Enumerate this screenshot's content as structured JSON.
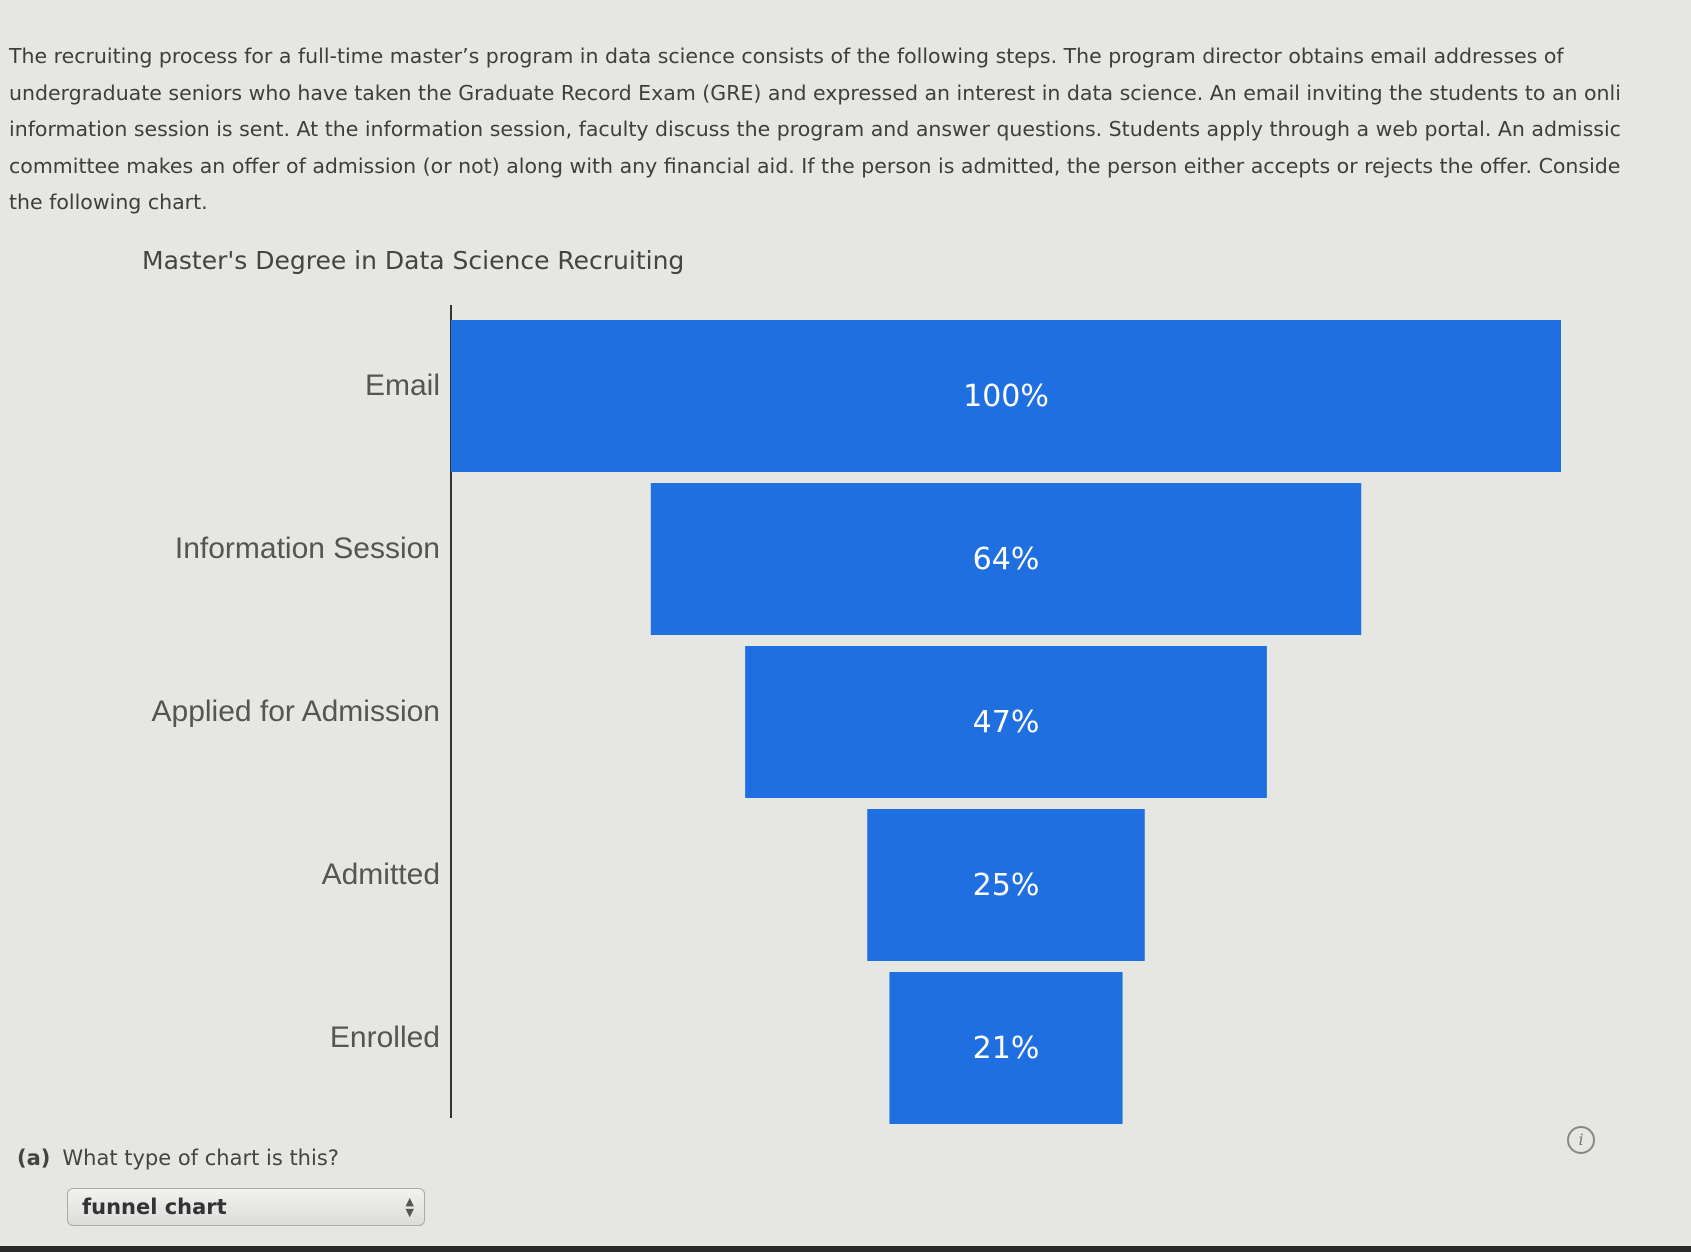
{
  "problem": {
    "lines": [
      "The recruiting process for a full-time master’s program in data science consists of the following steps. The program director obtains email addresses of",
      "undergraduate seniors who have taken the Graduate Record Exam (GRE) and expressed an interest in data science. An email inviting the students to an onli",
      "information session is sent. At the information session, faculty discuss the program and answer questions. Students apply through a web portal. An admissic",
      "committee makes an offer of admission (or not) along with any financial aid. If the person is admitted, the person either accepts or rejects the offer. Conside",
      "the following chart."
    ]
  },
  "chart_data": {
    "type": "bar",
    "subtype": "funnel",
    "title": "Master's Degree in Data Science Recruiting",
    "categories": [
      "Email",
      "Information Session",
      "Applied for Admission",
      "Admitted",
      "Enrolled"
    ],
    "values": [
      100,
      64,
      47,
      25,
      21
    ],
    "data_labels": [
      "100%",
      "64%",
      "47%",
      "25%",
      "21%"
    ],
    "unit": "%",
    "bar_color": "#1f6fe0",
    "grid": false,
    "legend": "none"
  },
  "question": {
    "part": "(a)",
    "text": "What type of chart is this?",
    "selected_answer": "funnel chart"
  },
  "icons": {
    "info": "info-icon",
    "select_arrows": "updown-arrows-icon"
  }
}
